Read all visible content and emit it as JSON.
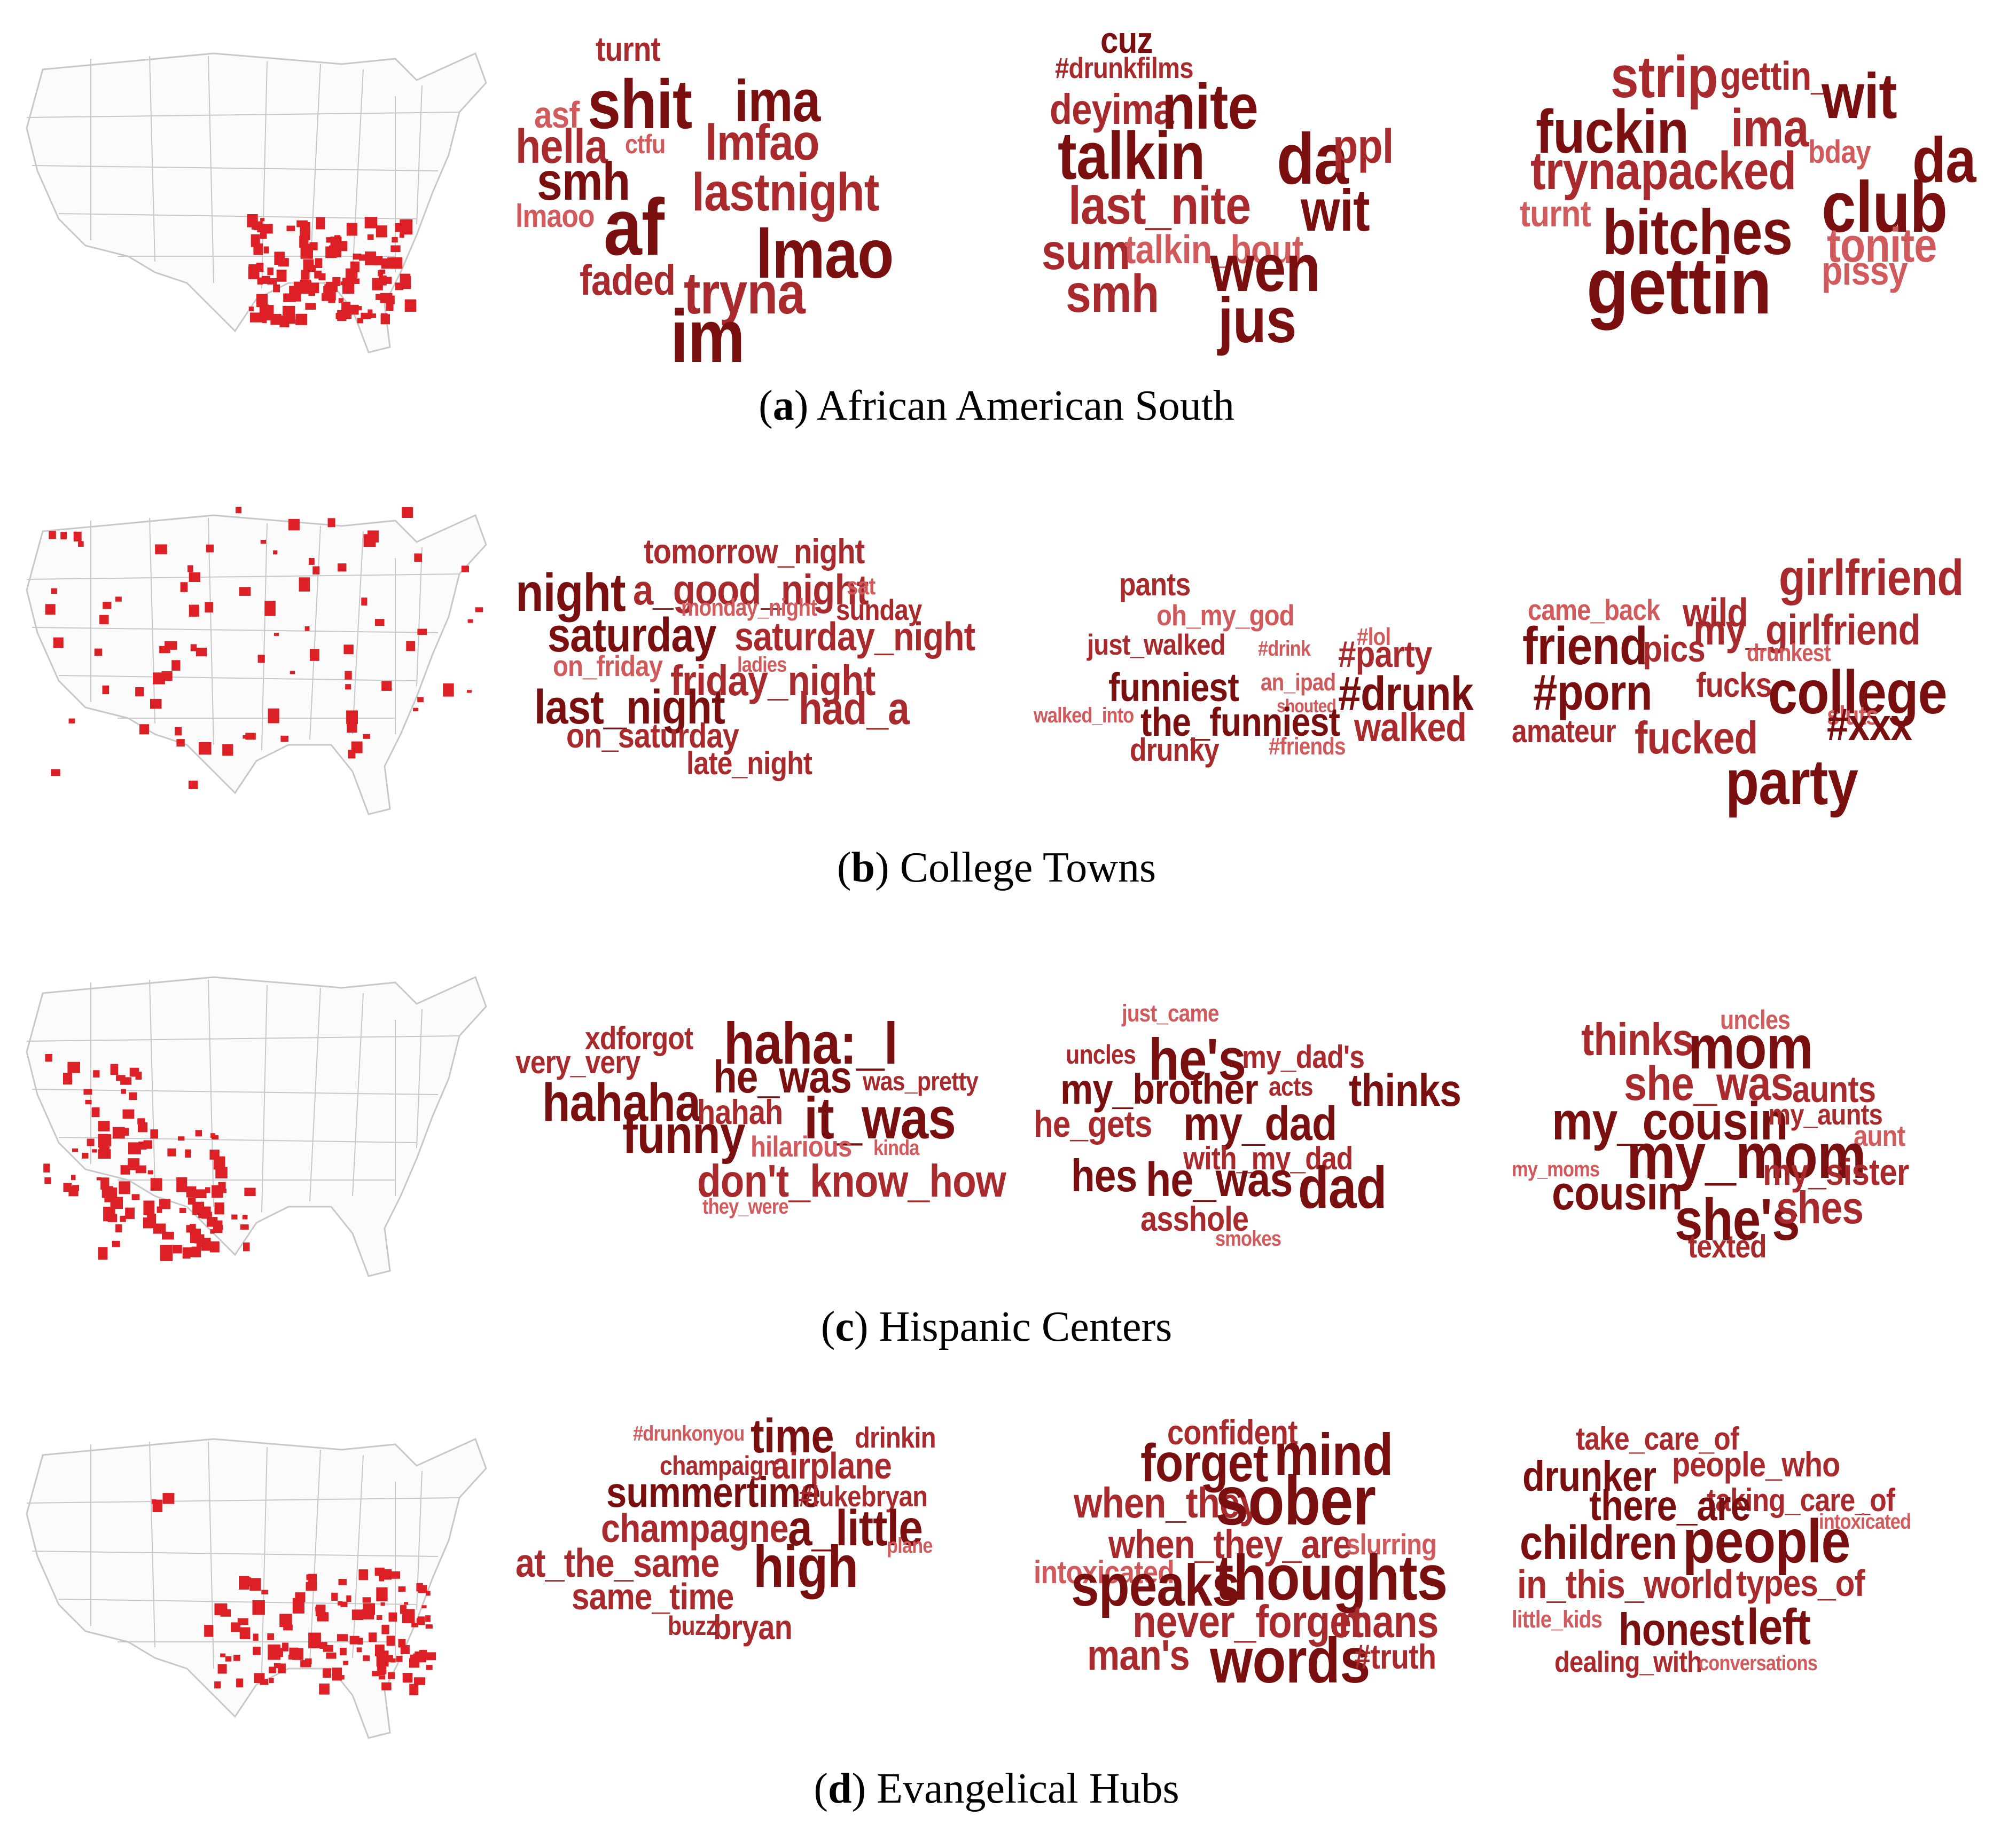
{
  "colors": {
    "dark": "#7a0f10",
    "mid": "#a82a2d",
    "light": "#d05a5c",
    "county_fill": "#dd1f26",
    "map_line": "#c8c8c8"
  },
  "panels": [
    {
      "letter": "a",
      "caption": "African American South",
      "map_region": "southeast",
      "clouds": [
        [
          "turnt",
          "shit",
          "ima",
          "asf",
          "hella",
          "ctfu",
          "lmfao",
          "smh",
          "lastnight",
          "lmaoo",
          "af",
          "lmao",
          "faded",
          "tryna",
          "im"
        ],
        [
          "cuz",
          "#drunkfilms",
          "deyima",
          "nite",
          "talkin",
          "da",
          "ppl",
          "last_nite",
          "wit",
          "sum",
          "talkin_bout",
          "wen",
          "smh",
          "jus"
        ],
        [
          "strip",
          "gettin_",
          "wit",
          "fuckin",
          "ima",
          "trynapacked",
          "bday",
          "da",
          "turnt",
          "club",
          "bitches",
          "tonite",
          "gettin",
          "pissy"
        ]
      ]
    },
    {
      "letter": "b",
      "caption": "College Towns",
      "map_region": "scattered",
      "clouds": [
        [
          "tomorrow_night",
          "night",
          "a_good_night",
          "sat",
          "monday_night",
          "sunday",
          "saturday",
          "saturday_night",
          "on_friday",
          "ladies",
          "friday_night",
          "last_night",
          "had_a",
          "on_saturday",
          "late_night"
        ],
        [
          "pants",
          "oh_my_god",
          "#lol",
          "just_walked",
          "#drink",
          "#party",
          "funniest",
          "an_ipad",
          "#drunk",
          "shouted",
          "walked_into",
          "the_funniest",
          "walked",
          "#friends",
          "drunky"
        ],
        [
          "girlfriend",
          "came_back",
          "wild",
          "my_girlfriend",
          "friend",
          "pics",
          "drunkest",
          "#porn",
          "fucks",
          "college",
          "sluts",
          "amateur",
          "fucked",
          "#xxx",
          "party"
        ]
      ]
    },
    {
      "letter": "c",
      "caption": "Hispanic Centers",
      "map_region": "southwest",
      "clouds": [
        [
          "xdforgot",
          "haha:_l",
          "very_very",
          "he_was",
          "was_pretty",
          "hahaha",
          "hahah",
          "it_was",
          "funny",
          "hilarious",
          "kinda",
          "don't_know_how",
          "they_were"
        ],
        [
          "just_came",
          "uncles",
          "he's",
          "my_dad's",
          "my_brother",
          "acts",
          "thinks",
          "he_gets",
          "my_dad",
          "with_my_dad",
          "hes",
          "he_was",
          "dad",
          "asshole",
          "smokes"
        ],
        [
          "uncles",
          "thinks",
          "mom",
          "she_was",
          "aunts",
          "my_cousin",
          "my_aunts",
          "aunt",
          "my_moms",
          "my_mom",
          "my_sister",
          "cousin",
          "she's",
          "shes",
          "texted"
        ]
      ]
    },
    {
      "letter": "d",
      "caption": "Evangelical Hubs",
      "map_region": "midsouth",
      "clouds": [
        [
          "#drunkonyou",
          "time",
          "drinkin",
          "champaign",
          "airplane",
          "summertime",
          "#lukebryan",
          "champagne",
          "a_little",
          "plane",
          "at_the_same",
          "high",
          "same_time",
          "buzz",
          "bryan"
        ],
        [
          "confident",
          "forget",
          "mind",
          "when_they",
          "sober",
          "when_they_are",
          "slurring",
          "intoxicated",
          "speaks",
          "thoughts",
          "never_forget",
          "mans",
          "man's",
          "words",
          "#truth"
        ],
        [
          "take_care_of",
          "drunker",
          "people_who",
          "taking_care_of",
          "there_are",
          "intoxicated",
          "children",
          "people",
          "in_this_world",
          "types_of",
          "little_kids",
          "honest",
          "left",
          "dealing_with",
          "conversations"
        ]
      ]
    }
  ]
}
